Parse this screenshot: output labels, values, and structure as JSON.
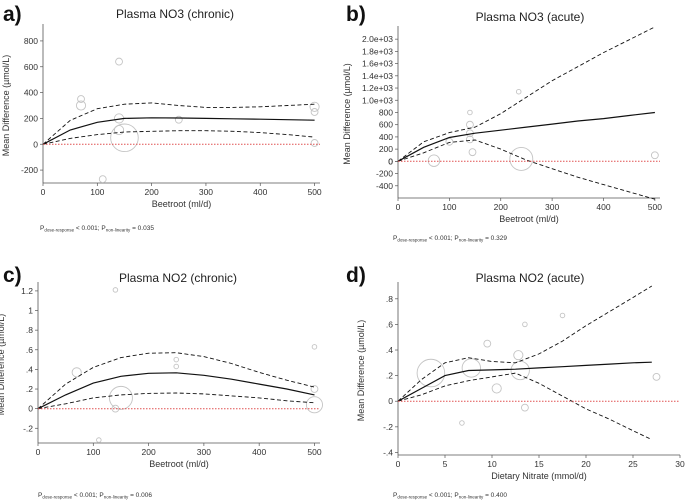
{
  "chart_data": [
    {
      "type": "line",
      "panel_letter": "a)",
      "title": "Plasma NO3 (chronic)",
      "xlabel": "Beetroot (ml/d)",
      "ylabel": "Mean Difference (µmol/L)",
      "xlim": [
        0,
        510
      ],
      "ylim": [
        -300,
        900
      ],
      "xticks": [
        "0",
        "100",
        "200",
        "300",
        "400",
        "500"
      ],
      "yticks": [
        "-200",
        "0",
        "200",
        "400",
        "600",
        "800"
      ],
      "xtick_values": [
        0,
        100,
        200,
        300,
        400,
        500
      ],
      "ytick_values": [
        -200,
        0,
        200,
        400,
        600,
        800
      ],
      "pvalue": {
        "dose_value": "< 0.001",
        "nonlin_value": "= 0.035",
        "dose_sub": "dose-response",
        "nonlin_sub": "non-linearity"
      },
      "series": [
        {
          "name": "estimate",
          "style": "solid",
          "x": [
            0,
            50,
            100,
            150,
            200,
            250,
            300,
            350,
            400,
            450,
            500
          ],
          "y": [
            0,
            110,
            170,
            200,
            205,
            203,
            200,
            197,
            194,
            190,
            186
          ]
        },
        {
          "name": "upper 95% CI",
          "style": "dashed",
          "x": [
            0,
            50,
            100,
            150,
            200,
            250,
            300,
            350,
            400,
            450,
            500
          ],
          "y": [
            0,
            185,
            275,
            310,
            320,
            300,
            285,
            285,
            290,
            300,
            310
          ]
        },
        {
          "name": "lower 95% CI",
          "style": "dashed",
          "x": [
            0,
            50,
            100,
            150,
            200,
            250,
            300,
            350,
            400,
            450,
            500
          ],
          "y": [
            0,
            45,
            75,
            95,
            100,
            105,
            105,
            100,
            90,
            75,
            55
          ]
        },
        {
          "name": "reference",
          "style": "dotted",
          "x": [
            0,
            510
          ],
          "y": [
            0,
            0
          ]
        }
      ],
      "studies": [
        {
          "x": 70,
          "y": 350,
          "weight": 3
        },
        {
          "x": 70,
          "y": 300,
          "weight": 4
        },
        {
          "x": 140,
          "y": 640,
          "weight": 3
        },
        {
          "x": 140,
          "y": 200,
          "weight": 4
        },
        {
          "x": 140,
          "y": 110,
          "weight": 4
        },
        {
          "x": 150,
          "y": 50,
          "weight": 12
        },
        {
          "x": 110,
          "y": -270,
          "weight": 3
        },
        {
          "x": 250,
          "y": 190,
          "weight": 3
        },
        {
          "x": 500,
          "y": 290,
          "weight": 4
        },
        {
          "x": 500,
          "y": 250,
          "weight": 3
        },
        {
          "x": 500,
          "y": 10,
          "weight": 3
        }
      ]
    },
    {
      "type": "line",
      "panel_letter": "b)",
      "title": "Plasma NO3 (acute)",
      "xlabel": "Beetroot (ml/d)",
      "ylabel": "Mean Difference (µmol/L)",
      "xlim": [
        0,
        510
      ],
      "ylim": [
        -600,
        2150
      ],
      "xticks": [
        "0",
        "100",
        "200",
        "300",
        "400",
        "500"
      ],
      "yticks": [
        "-400",
        "-200",
        "0",
        "0",
        "200",
        "400",
        "600",
        "800",
        "1.0e+03",
        "1.2e+03",
        "1.4e+03",
        "1.6e+03",
        "1.8e+03",
        "2.0e+03"
      ],
      "xtick_values": [
        0,
        100,
        200,
        300,
        400,
        500
      ],
      "ytick_values": [
        -400,
        -200,
        0,
        0,
        200,
        400,
        600,
        800,
        1000,
        1200,
        1400,
        1600,
        1800,
        2000
      ],
      "pvalue": {
        "dose_value": "< 0.001",
        "nonlin_value": "= 0.329",
        "dose_sub": "dose-response",
        "nonlin_sub": "non-linearity"
      },
      "series": [
        {
          "name": "estimate",
          "style": "solid",
          "x": [
            0,
            50,
            100,
            150,
            200,
            250,
            300,
            350,
            400,
            450,
            500
          ],
          "y": [
            0,
            230,
            390,
            460,
            510,
            560,
            610,
            660,
            700,
            750,
            800
          ]
        },
        {
          "name": "upper 95% CI",
          "style": "dashed",
          "x": [
            0,
            50,
            100,
            150,
            200,
            250,
            300,
            350,
            400,
            450,
            500
          ],
          "y": [
            0,
            320,
            470,
            560,
            780,
            1050,
            1320,
            1550,
            1780,
            1990,
            2200
          ]
        },
        {
          "name": "lower 95% CI",
          "style": "dashed",
          "x": [
            0,
            50,
            100,
            150,
            200,
            250,
            300,
            350,
            400,
            450,
            500
          ],
          "y": [
            0,
            140,
            310,
            350,
            200,
            20,
            -120,
            -260,
            -380,
            -500,
            -620
          ]
        },
        {
          "name": "reference",
          "style": "dotted",
          "x": [
            0,
            510
          ],
          "y": [
            0,
            0
          ]
        }
      ],
      "studies": [
        {
          "x": 70,
          "y": 10,
          "weight": 5
        },
        {
          "x": 100,
          "y": 320,
          "weight": 3
        },
        {
          "x": 140,
          "y": 800,
          "weight": 2
        },
        {
          "x": 140,
          "y": 600,
          "weight": 3
        },
        {
          "x": 140,
          "y": 460,
          "weight": 3
        },
        {
          "x": 140,
          "y": 360,
          "weight": 3
        },
        {
          "x": 145,
          "y": 150,
          "weight": 3
        },
        {
          "x": 235,
          "y": 1140,
          "weight": 2
        },
        {
          "x": 240,
          "y": 40,
          "weight": 10
        },
        {
          "x": 500,
          "y": 100,
          "weight": 3
        }
      ]
    },
    {
      "type": "line",
      "panel_letter": "c)",
      "title": "Plasma NO2 (chronic)",
      "xlabel": "Beetroot (ml/d)",
      "ylabel": "Mean Difference (µmol/L)",
      "xlim": [
        0,
        510
      ],
      "ylim": [
        -0.35,
        1.25
      ],
      "xticks": [
        "0",
        "100",
        "200",
        "300",
        "400",
        "500"
      ],
      "yticks": [
        "-.2",
        "0",
        ".2",
        ".4",
        ".6",
        ".8",
        "1",
        "1.2"
      ],
      "xtick_values": [
        0,
        100,
        200,
        300,
        400,
        500
      ],
      "ytick_values": [
        -0.2,
        0,
        0.2,
        0.4,
        0.6,
        0.8,
        1,
        1.2
      ],
      "pvalue": {
        "dose_value": "< 0.001",
        "nonlin_value": "= 0.006",
        "dose_sub": "dose-response",
        "nonlin_sub": "non-linearity"
      },
      "series": [
        {
          "name": "estimate",
          "style": "solid",
          "x": [
            0,
            50,
            100,
            150,
            200,
            250,
            300,
            350,
            400,
            450,
            500
          ],
          "y": [
            0,
            0.14,
            0.26,
            0.33,
            0.36,
            0.365,
            0.34,
            0.3,
            0.25,
            0.2,
            0.14
          ]
        },
        {
          "name": "upper 95% CI",
          "style": "dashed",
          "x": [
            0,
            50,
            100,
            150,
            200,
            250,
            300,
            350,
            400,
            450,
            500
          ],
          "y": [
            0,
            0.25,
            0.42,
            0.52,
            0.565,
            0.57,
            0.53,
            0.46,
            0.37,
            0.29,
            0.22
          ]
        },
        {
          "name": "lower 95% CI",
          "style": "dashed",
          "x": [
            0,
            50,
            100,
            150,
            200,
            250,
            300,
            350,
            400,
            450,
            500
          ],
          "y": [
            0,
            0.05,
            0.11,
            0.14,
            0.155,
            0.16,
            0.15,
            0.13,
            0.11,
            0.08,
            0.06
          ]
        },
        {
          "name": "reference",
          "style": "dotted",
          "x": [
            0,
            510
          ],
          "y": [
            0,
            0
          ]
        }
      ],
      "studies": [
        {
          "x": 70,
          "y": 0.37,
          "weight": 4
        },
        {
          "x": 140,
          "y": 1.21,
          "weight": 2
        },
        {
          "x": 150,
          "y": 0.11,
          "weight": 10
        },
        {
          "x": 140,
          "y": 0.0,
          "weight": 3
        },
        {
          "x": 110,
          "y": -0.32,
          "weight": 2
        },
        {
          "x": 250,
          "y": 0.5,
          "weight": 2
        },
        {
          "x": 250,
          "y": 0.43,
          "weight": 2
        },
        {
          "x": 500,
          "y": 0.63,
          "weight": 2
        },
        {
          "x": 500,
          "y": 0.2,
          "weight": 3
        },
        {
          "x": 500,
          "y": 0.04,
          "weight": 7
        }
      ]
    },
    {
      "type": "line",
      "panel_letter": "d)",
      "title": "Plasma NO2 (acute)",
      "xlabel": "Dietary Nitrate (mmol/d)",
      "ylabel": "Mean Difference (µmol/L)",
      "xlim": [
        0,
        30
      ],
      "ylim": [
        -0.42,
        0.9
      ],
      "xticks": [
        "0",
        "5",
        "10",
        "15",
        "20",
        "25",
        "30"
      ],
      "yticks": [
        "-.4",
        "-.2",
        "0",
        ".2",
        ".4",
        ".6",
        ".8"
      ],
      "xtick_values": [
        0,
        5,
        10,
        15,
        20,
        25,
        30
      ],
      "ytick_values": [
        -0.4,
        -0.2,
        0,
        0.2,
        0.4,
        0.6,
        0.8
      ],
      "pvalue": {
        "dose_value": "< 0.001",
        "nonlin_value": "= 0.400",
        "dose_sub": "dose-response",
        "nonlin_sub": "non-linearity"
      },
      "series": [
        {
          "name": "estimate",
          "style": "solid",
          "x": [
            0,
            2.5,
            5,
            7.5,
            10,
            12.5,
            15,
            17.5,
            20,
            22.5,
            25,
            27
          ],
          "y": [
            0,
            0.1,
            0.2,
            0.24,
            0.245,
            0.25,
            0.26,
            0.27,
            0.28,
            0.29,
            0.3,
            0.305
          ]
        },
        {
          "name": "upper 95% CI",
          "style": "dashed",
          "x": [
            0,
            2.5,
            5,
            7.5,
            10,
            12.5,
            15,
            17.5,
            20,
            22.5,
            25,
            27
          ],
          "y": [
            0,
            0.17,
            0.3,
            0.34,
            0.31,
            0.3,
            0.37,
            0.47,
            0.59,
            0.7,
            0.81,
            0.9
          ]
        },
        {
          "name": "lower 95% CI",
          "style": "dashed",
          "x": [
            0,
            2.5,
            5,
            7.5,
            10,
            12.5,
            15,
            17.5,
            20,
            22.5,
            25,
            27
          ],
          "y": [
            0,
            0.05,
            0.12,
            0.16,
            0.19,
            0.22,
            0.14,
            0.04,
            -0.06,
            -0.14,
            -0.23,
            -0.3
          ]
        },
        {
          "name": "reference",
          "style": "dotted",
          "x": [
            0,
            30
          ],
          "y": [
            0,
            0
          ]
        }
      ],
      "studies": [
        {
          "x": 3.5,
          "y": 0.22,
          "weight": 12
        },
        {
          "x": 7.8,
          "y": 0.26,
          "weight": 8
        },
        {
          "x": 9.5,
          "y": 0.45,
          "weight": 3
        },
        {
          "x": 10.5,
          "y": 0.1,
          "weight": 4
        },
        {
          "x": 12.8,
          "y": 0.36,
          "weight": 4
        },
        {
          "x": 13.0,
          "y": 0.24,
          "weight": 8
        },
        {
          "x": 13.5,
          "y": 0.6,
          "weight": 2
        },
        {
          "x": 13.5,
          "y": -0.05,
          "weight": 3
        },
        {
          "x": 6.8,
          "y": -0.17,
          "weight": 2
        },
        {
          "x": 17.5,
          "y": 0.67,
          "weight": 2
        },
        {
          "x": 27.5,
          "y": 0.19,
          "weight": 3
        }
      ]
    }
  ]
}
